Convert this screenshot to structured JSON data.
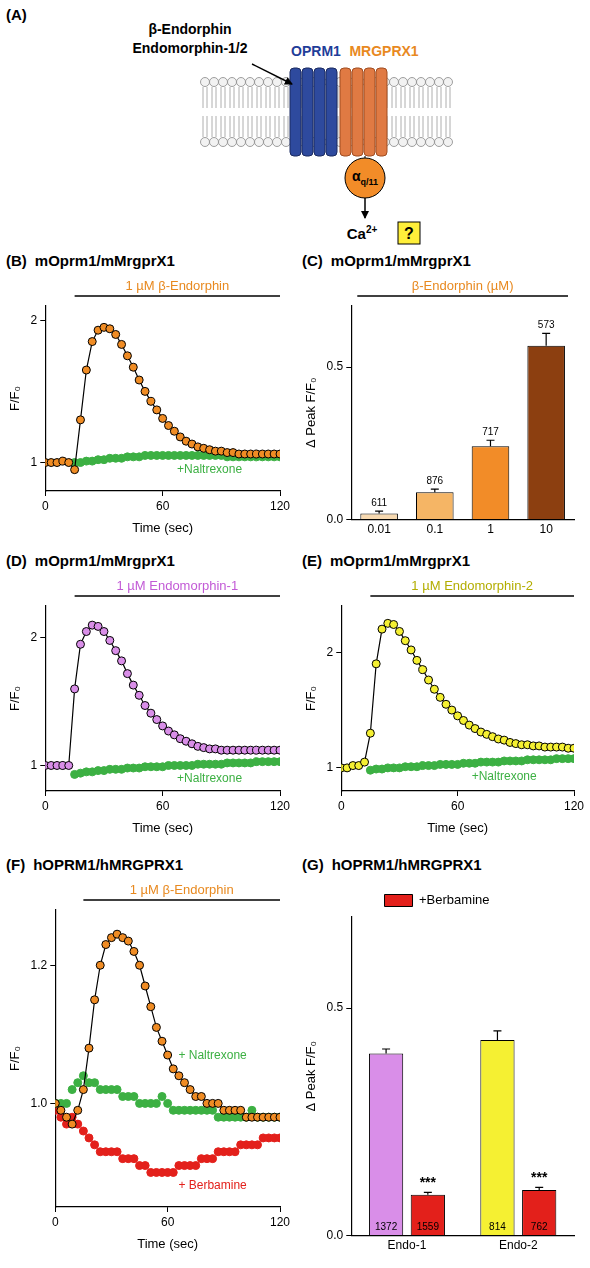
{
  "diagram": {
    "panel": "(A)",
    "ligands": [
      "β-Endorphin",
      "Endomorphin-1/2"
    ],
    "receptors": [
      {
        "text": "OPRM1",
        "color": "#1f3d99"
      },
      {
        "text": "MRGPRX1",
        "color": "#e8891f"
      }
    ],
    "g_protein": {
      "text": "α",
      "subscript": "q/11"
    },
    "ion": {
      "text": "Ca",
      "superscript": "2+"
    },
    "unknown": "?"
  },
  "chart_data": [
    {
      "panel": "(B)",
      "title": "mOprm1/mMrgprX1",
      "type": "line",
      "x_label": "Time (sec)",
      "y_label": "F/F₀",
      "x": [
        0,
        3,
        6,
        9,
        12,
        15,
        18,
        21,
        24,
        27,
        30,
        33,
        36,
        39,
        42,
        45,
        48,
        51,
        54,
        57,
        60,
        63,
        66,
        69,
        72,
        75,
        78,
        81,
        84,
        87,
        90,
        93,
        96,
        99,
        102,
        105,
        108,
        111,
        114,
        117,
        120
      ],
      "xlim": [
        0,
        120
      ],
      "xticks": [
        0,
        60,
        120
      ],
      "ylim": [
        0.8,
        2.1
      ],
      "yticks": [
        1,
        2
      ],
      "grid": false,
      "annotation": {
        "text": "1 µM β-Endorphin",
        "x": [
          15,
          120
        ],
        "color": "#e8891f"
      },
      "series": [
        {
          "color": "#f08c24",
          "marker": "circle",
          "line_style": "solid",
          "values": [
            1.0,
            1.0,
            1.0,
            1.01,
            1.0,
            0.95,
            1.3,
            1.65,
            1.85,
            1.93,
            1.95,
            1.94,
            1.9,
            1.83,
            1.75,
            1.67,
            1.58,
            1.5,
            1.43,
            1.37,
            1.31,
            1.26,
            1.22,
            1.18,
            1.15,
            1.13,
            1.11,
            1.1,
            1.09,
            1.08,
            1.08,
            1.07,
            1.07,
            1.06,
            1.06,
            1.06,
            1.06,
            1.06,
            1.06,
            1.06,
            1.06
          ]
        },
        {
          "name": "+Naltrexone",
          "color": "#3cb043",
          "marker": "circle",
          "line_style": "none",
          "values": [
            null,
            null,
            null,
            null,
            null,
            1.0,
            1.0,
            1.01,
            1.01,
            1.02,
            1.02,
            1.03,
            1.03,
            1.03,
            1.04,
            1.04,
            1.04,
            1.05,
            1.05,
            1.05,
            1.05,
            1.05,
            1.05,
            1.05,
            1.05,
            1.05,
            1.05,
            1.05,
            1.05,
            1.05,
            1.05,
            1.04,
            1.04,
            1.04,
            1.04,
            1.04,
            1.04,
            1.04,
            1.04,
            1.04,
            1.04
          ]
        }
      ]
    },
    {
      "panel": "(C)",
      "title": "mOprm1/mMrgprX1",
      "type": "bar",
      "y_label": "Δ Peak F/F₀",
      "categories": [
        "0.01",
        "0.1",
        "1",
        "10"
      ],
      "ylim": [
        0,
        0.7
      ],
      "yticks": [
        {
          "value": 0,
          "label": "0.0"
        },
        {
          "value": 0.5,
          "label": "0.5"
        }
      ],
      "grid": false,
      "annotation": {
        "text": "β-Endorphin (µM)",
        "color": "#e8891f"
      },
      "series": [
        {
          "colors": [
            "#f7d9b0",
            "#f5b565",
            "#f28c28",
            "#8c3f10"
          ],
          "values": [
            0.02,
            0.09,
            0.24,
            0.57
          ],
          "errors": [
            0.008,
            0.01,
            0.02,
            0.04
          ],
          "n": [
            611,
            876,
            717,
            573
          ]
        }
      ]
    },
    {
      "panel": "(D)",
      "title": "mOprm1/mMrgprX1",
      "type": "line",
      "x_label": "Time (sec)",
      "y_label": "F/F₀",
      "x": [
        0,
        3,
        6,
        9,
        12,
        15,
        18,
        21,
        24,
        27,
        30,
        33,
        36,
        39,
        42,
        45,
        48,
        51,
        54,
        57,
        60,
        63,
        66,
        69,
        72,
        75,
        78,
        81,
        84,
        87,
        90,
        93,
        96,
        99,
        102,
        105,
        108,
        111,
        114,
        117,
        120
      ],
      "xlim": [
        0,
        120
      ],
      "xticks": [
        0,
        60,
        120
      ],
      "ylim": [
        0.8,
        2.25
      ],
      "yticks": [
        1,
        2
      ],
      "grid": false,
      "annotation": {
        "text": "1 µM Endomorphin-1",
        "x": [
          15,
          120
        ],
        "color": "#c25ad6"
      },
      "series": [
        {
          "color": "#d98ee8",
          "marker": "circle",
          "line_style": "solid",
          "values": [
            1.0,
            1.0,
            1.0,
            1.0,
            1.0,
            1.6,
            1.95,
            2.05,
            2.1,
            2.09,
            2.05,
            1.98,
            1.9,
            1.82,
            1.72,
            1.63,
            1.55,
            1.47,
            1.41,
            1.36,
            1.31,
            1.27,
            1.24,
            1.21,
            1.19,
            1.17,
            1.15,
            1.14,
            1.13,
            1.13,
            1.12,
            1.12,
            1.12,
            1.12,
            1.12,
            1.12,
            1.12,
            1.12,
            1.12,
            1.12,
            1.12
          ]
        },
        {
          "name": "+Naltrexone",
          "color": "#3cb043",
          "marker": "circle",
          "line_style": "none",
          "values": [
            null,
            null,
            null,
            null,
            null,
            0.93,
            0.94,
            0.95,
            0.95,
            0.96,
            0.96,
            0.97,
            0.97,
            0.97,
            0.98,
            0.98,
            0.98,
            0.99,
            0.99,
            0.99,
            0.99,
            1.0,
            1.0,
            1.0,
            1.0,
            1.0,
            1.01,
            1.01,
            1.01,
            1.01,
            1.01,
            1.02,
            1.02,
            1.02,
            1.02,
            1.02,
            1.03,
            1.03,
            1.03,
            1.03,
            1.03
          ]
        }
      ]
    },
    {
      "panel": "(E)",
      "title": "mOprm1/mMrgprX1",
      "type": "line",
      "x_label": "Time (sec)",
      "y_label": "F/F₀",
      "x": [
        0,
        3,
        6,
        9,
        12,
        15,
        18,
        21,
        24,
        27,
        30,
        33,
        36,
        39,
        42,
        45,
        48,
        51,
        54,
        57,
        60,
        63,
        66,
        69,
        72,
        75,
        78,
        81,
        84,
        87,
        90,
        93,
        96,
        99,
        102,
        105,
        108,
        111,
        114,
        117,
        120
      ],
      "xlim": [
        0,
        120
      ],
      "xticks": [
        0,
        60,
        120
      ],
      "ylim": [
        0.8,
        2.4
      ],
      "yticks": [
        1,
        2
      ],
      "grid": false,
      "annotation": {
        "text": "1 µM Endomorphin-2",
        "x": [
          15,
          120
        ],
        "color": "#b3ad00"
      },
      "series": [
        {
          "color": "#f5f032",
          "marker": "circle",
          "line_style": "solid",
          "values": [
            1.0,
            1.0,
            1.02,
            1.02,
            1.05,
            1.3,
            1.9,
            2.2,
            2.25,
            2.24,
            2.18,
            2.1,
            2.02,
            1.93,
            1.85,
            1.76,
            1.68,
            1.61,
            1.55,
            1.5,
            1.45,
            1.41,
            1.37,
            1.34,
            1.31,
            1.29,
            1.27,
            1.25,
            1.24,
            1.22,
            1.21,
            1.2,
            1.2,
            1.19,
            1.19,
            1.18,
            1.18,
            1.18,
            1.18,
            1.17,
            1.17
          ]
        },
        {
          "name": "+Naltrexone",
          "color": "#3cb043",
          "marker": "circle",
          "line_style": "none",
          "values": [
            null,
            null,
            null,
            null,
            null,
            0.98,
            0.99,
            0.99,
            1.0,
            1.0,
            1.0,
            1.01,
            1.01,
            1.01,
            1.02,
            1.02,
            1.02,
            1.03,
            1.03,
            1.03,
            1.03,
            1.04,
            1.04,
            1.04,
            1.05,
            1.05,
            1.05,
            1.05,
            1.06,
            1.06,
            1.06,
            1.06,
            1.07,
            1.07,
            1.07,
            1.07,
            1.07,
            1.08,
            1.08,
            1.08,
            1.08
          ]
        }
      ]
    },
    {
      "panel": "(F)",
      "title": "hOPRM1/hMRGPRX1",
      "type": "line",
      "x_label": "Time (sec)",
      "y_label": "F/F₀",
      "x": [
        0,
        3,
        6,
        9,
        12,
        15,
        18,
        21,
        24,
        27,
        30,
        33,
        36,
        39,
        42,
        45,
        48,
        51,
        54,
        57,
        60,
        63,
        66,
        69,
        72,
        75,
        78,
        81,
        84,
        87,
        90,
        93,
        96,
        99,
        102,
        105,
        108,
        111,
        114,
        117,
        120
      ],
      "xlim": [
        0,
        120
      ],
      "xticks": [
        0,
        60,
        120
      ],
      "ylim": [
        0.85,
        1.28
      ],
      "yticks": [
        {
          "value": 1,
          "label": "1.0"
        },
        {
          "value": 1.2,
          "label": "1.2"
        }
      ],
      "grid": false,
      "annotation": {
        "text": "1 µM β-Endorphin",
        "x": [
          15,
          120
        ],
        "color": "#e8891f"
      },
      "series": [
        {
          "color": "#f08c24",
          "marker": "circle",
          "line_style": "solid",
          "values": [
            1.0,
            0.99,
            0.98,
            0.97,
            0.99,
            1.02,
            1.08,
            1.15,
            1.2,
            1.23,
            1.24,
            1.245,
            1.24,
            1.235,
            1.22,
            1.2,
            1.17,
            1.14,
            1.11,
            1.09,
            1.07,
            1.05,
            1.04,
            1.03,
            1.02,
            1.01,
            1.01,
            1.0,
            1.0,
            1.0,
            0.99,
            0.99,
            0.99,
            0.99,
            0.98,
            0.98,
            0.98,
            0.98,
            0.98,
            0.98,
            0.98
          ]
        },
        {
          "name": "+ Naltrexone",
          "color": "#3cb043",
          "marker": "circle",
          "line_style": "none",
          "values": [
            1.0,
            1.0,
            1.0,
            1.02,
            1.03,
            1.04,
            1.03,
            1.03,
            1.02,
            1.02,
            1.02,
            1.02,
            1.01,
            1.01,
            1.01,
            1.0,
            1.0,
            1.0,
            1.0,
            1.01,
            1.0,
            0.99,
            0.99,
            0.99,
            0.99,
            0.99,
            0.99,
            0.99,
            0.99,
            0.98,
            0.98,
            0.98,
            0.98,
            0.98,
            0.98,
            0.99,
            0.98,
            0.98,
            0.98,
            0.98,
            0.98
          ]
        },
        {
          "name": "+ Berbamine",
          "color": "#e3201b",
          "marker": "circle",
          "line_style": "none",
          "values": [
            0.99,
            0.98,
            0.97,
            0.98,
            0.97,
            0.96,
            0.95,
            0.94,
            0.93,
            0.93,
            0.93,
            0.93,
            0.92,
            0.92,
            0.92,
            0.91,
            0.91,
            0.9,
            0.9,
            0.9,
            0.9,
            0.9,
            0.91,
            0.91,
            0.91,
            0.91,
            0.92,
            0.92,
            0.92,
            0.93,
            0.93,
            0.93,
            0.93,
            0.94,
            0.94,
            0.94,
            0.94,
            0.95,
            0.95,
            0.95,
            0.95
          ]
        }
      ]
    },
    {
      "panel": "(G)",
      "title": "hOPRM1/hMRGPRX1",
      "type": "bar",
      "y_label": "Δ Peak F/F₀",
      "categories": [
        "Endo-1",
        "Endo-2"
      ],
      "ylim": [
        0,
        0.7
      ],
      "yticks": [
        {
          "value": 0,
          "label": "0.0"
        },
        {
          "value": 0.5,
          "label": "0.5"
        }
      ],
      "grid": false,
      "legend": "top",
      "series": [
        {
          "colors": [
            "#d98ee8",
            "#f5f032"
          ],
          "values": [
            0.4,
            0.43
          ],
          "errors": [
            0.01,
            0.02
          ],
          "n": [
            1372,
            814
          ]
        },
        {
          "name": "+Berbamine",
          "color": "#e3201b",
          "values": [
            0.09,
            0.1
          ],
          "errors": [
            0.005,
            0.006
          ],
          "n": [
            1559,
            762
          ],
          "significance": [
            "***",
            "***"
          ]
        }
      ]
    }
  ]
}
